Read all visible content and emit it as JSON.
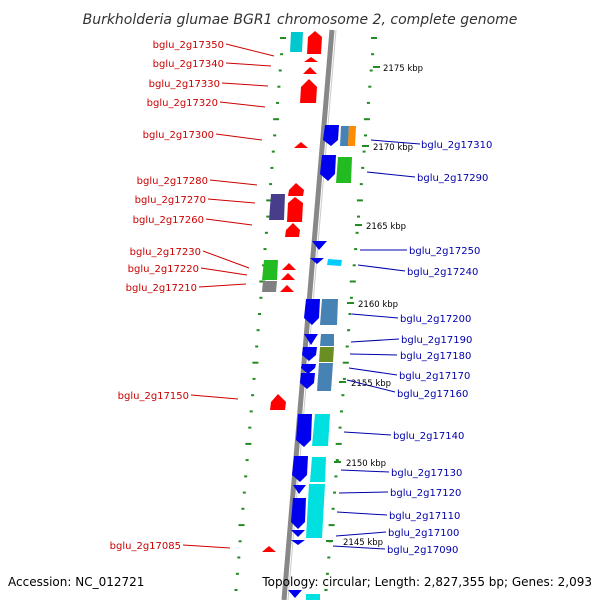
{
  "title": "Burkholderia glumae BGR1 chromosome 2, complete genome",
  "footer": {
    "accession": "Accession: NC_012721",
    "topology": "Topology: circular; Length: 2,827,355 bp; Genes: 2,093"
  },
  "colors": {
    "reverse_label": "#cc0000",
    "forward_label": "#0000aa",
    "backbone": "#888888",
    "tick": "#228b22"
  },
  "kbp_marks": [
    "2175 kbp",
    "2170 kbp",
    "2165 kbp",
    "2160 kbp",
    "2155 kbp",
    "2150 kbp",
    "2145 kbp"
  ],
  "left_labels": [
    "bglu_2g17350",
    "bglu_2g17340",
    "bglu_2g17330",
    "bglu_2g17320",
    "bglu_2g17300",
    "bglu_2g17280",
    "bglu_2g17270",
    "bglu_2g17260",
    "bglu_2g17230",
    "bglu_2g17220",
    "bglu_2g17210",
    "bglu_2g17150",
    "bglu_2g17085"
  ],
  "right_labels": [
    "bglu_2g17310",
    "bglu_2g17290",
    "bglu_2g17250",
    "bglu_2g17240",
    "bglu_2g17200",
    "bglu_2g17190",
    "bglu_2g17180",
    "bglu_2g17170",
    "bglu_2g17160",
    "bglu_2g17140",
    "bglu_2g17130",
    "bglu_2g17120",
    "bglu_2g17110",
    "bglu_2g17100",
    "bglu_2g17090"
  ]
}
